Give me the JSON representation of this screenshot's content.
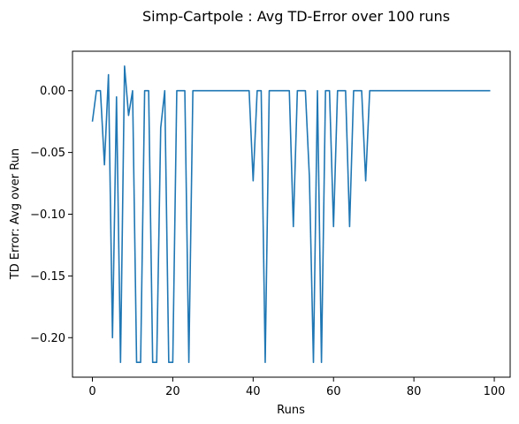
{
  "chart_data": {
    "type": "line",
    "title": "Simp-Cartpole : Avg TD-Error over 100 runs",
    "xlabel": "Runs",
    "ylabel": "TD Error: Avg over Run",
    "xlim": [
      -4.95,
      103.95
    ],
    "ylim": [
      -0.232,
      0.032
    ],
    "x_ticks": [
      0,
      20,
      40,
      60,
      80,
      100
    ],
    "x_tick_labels": [
      "0",
      "20",
      "40",
      "60",
      "80",
      "100"
    ],
    "y_ticks": [
      0.0,
      -0.05,
      -0.1,
      -0.15,
      -0.2
    ],
    "y_tick_labels": [
      "0.00",
      "−0.05",
      "−0.10",
      "−0.15",
      "−0.20"
    ],
    "grid": false,
    "legend": "none",
    "series": [
      {
        "color": "#1f77b4",
        "x": [
          0,
          1,
          2,
          3,
          4,
          5,
          6,
          7,
          8,
          9,
          10,
          11,
          12,
          13,
          14,
          15,
          16,
          17,
          18,
          19,
          20,
          21,
          22,
          23,
          24,
          25,
          26,
          27,
          28,
          29,
          30,
          31,
          32,
          33,
          34,
          35,
          36,
          37,
          38,
          39,
          40,
          41,
          42,
          43,
          44,
          45,
          46,
          47,
          48,
          49,
          50,
          51,
          52,
          53,
          54,
          55,
          56,
          57,
          58,
          59,
          60,
          61,
          62,
          63,
          64,
          65,
          66,
          67,
          68,
          69,
          70,
          71,
          72,
          73,
          74,
          75,
          76,
          77,
          78,
          79,
          80,
          81,
          82,
          83,
          84,
          85,
          86,
          87,
          88,
          89,
          90,
          91,
          92,
          93,
          94,
          95,
          96,
          97,
          98,
          99
        ],
        "y": [
          -0.025,
          0,
          0,
          -0.06,
          0.013,
          -0.2,
          -0.005,
          -0.22,
          0.02,
          -0.02,
          0,
          -0.22,
          -0.22,
          0,
          0,
          -0.22,
          -0.22,
          -0.03,
          0,
          -0.22,
          -0.22,
          0,
          0,
          0,
          -0.22,
          0,
          0,
          0,
          0,
          0,
          0,
          0,
          0,
          0,
          0,
          0,
          0,
          0,
          0,
          0,
          -0.073,
          0,
          0,
          -0.22,
          0,
          0,
          0,
          0,
          0,
          0,
          -0.11,
          0,
          0,
          0,
          -0.07,
          -0.22,
          0,
          -0.22,
          0,
          0,
          -0.11,
          0,
          0,
          0,
          -0.11,
          0,
          0,
          0,
          -0.073,
          0,
          0,
          0,
          0,
          0,
          0,
          0,
          0,
          0,
          0,
          0,
          0,
          0,
          0,
          0,
          0,
          0,
          0,
          0,
          0,
          0,
          0,
          0,
          0,
          0,
          0,
          0,
          0,
          0,
          0,
          0
        ]
      }
    ]
  }
}
